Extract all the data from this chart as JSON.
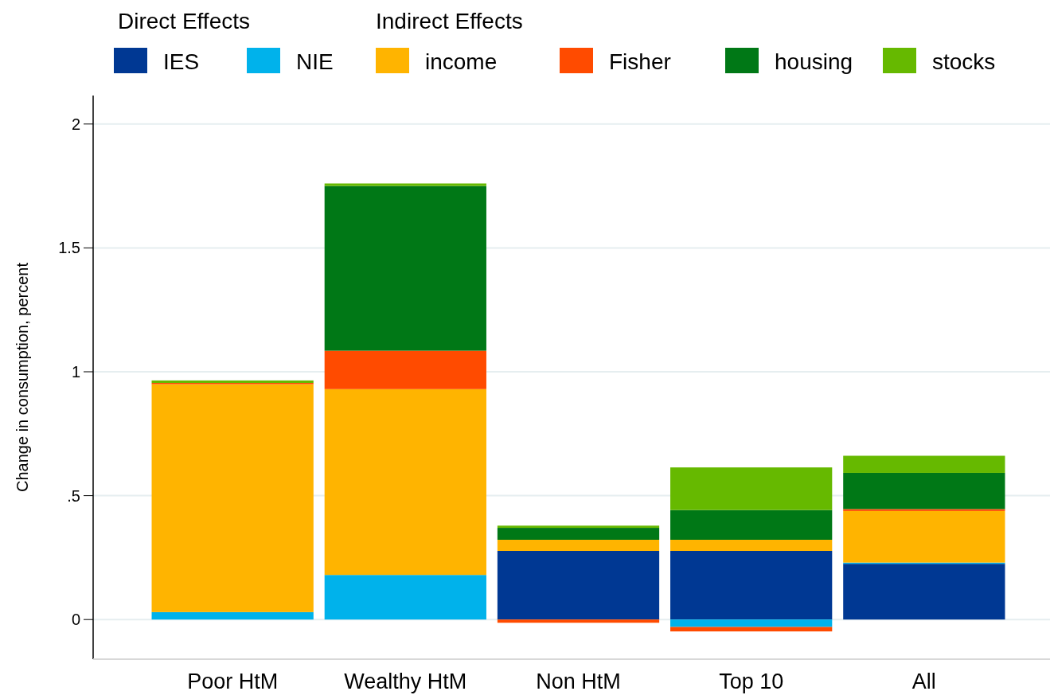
{
  "chart_data": {
    "type": "bar",
    "stacked": true,
    "ylabel": "Change in consumption, percent",
    "categories": [
      "Poor HtM",
      "Wealthy HtM",
      "Non HtM",
      "Top 10",
      "All"
    ],
    "series": [
      {
        "name": "IES",
        "color": "#003893",
        "values": [
          0,
          0,
          0.277,
          0.277,
          0.225
        ]
      },
      {
        "name": "NIE",
        "color": "#00b2eb",
        "values": [
          0.03,
          0.18,
          0,
          -0.03,
          0.005
        ]
      },
      {
        "name": "income",
        "color": "#ffb400",
        "values": [
          0.92,
          0.75,
          0.045,
          0.045,
          0.208
        ]
      },
      {
        "name": "Fisher",
        "color": "#ff4b00",
        "values": [
          0.005,
          0.155,
          -0.013,
          -0.018,
          0.008
        ]
      },
      {
        "name": "housing",
        "color": "#007816",
        "values": [
          0,
          0.665,
          0.048,
          0.12,
          0.146
        ]
      },
      {
        "name": "stocks",
        "color": "#66b900",
        "values": [
          0.01,
          0.01,
          0.009,
          0.172,
          0.069
        ]
      }
    ],
    "ylim": [
      -0.16,
      2.115
    ],
    "yticks": [
      0,
      {
        "value": 0.5,
        "label": ".5"
      },
      1,
      1.5,
      2
    ],
    "grid": "y",
    "legend": "top",
    "annotations": [
      "Direct Effects",
      "Indirect Effects"
    ]
  }
}
